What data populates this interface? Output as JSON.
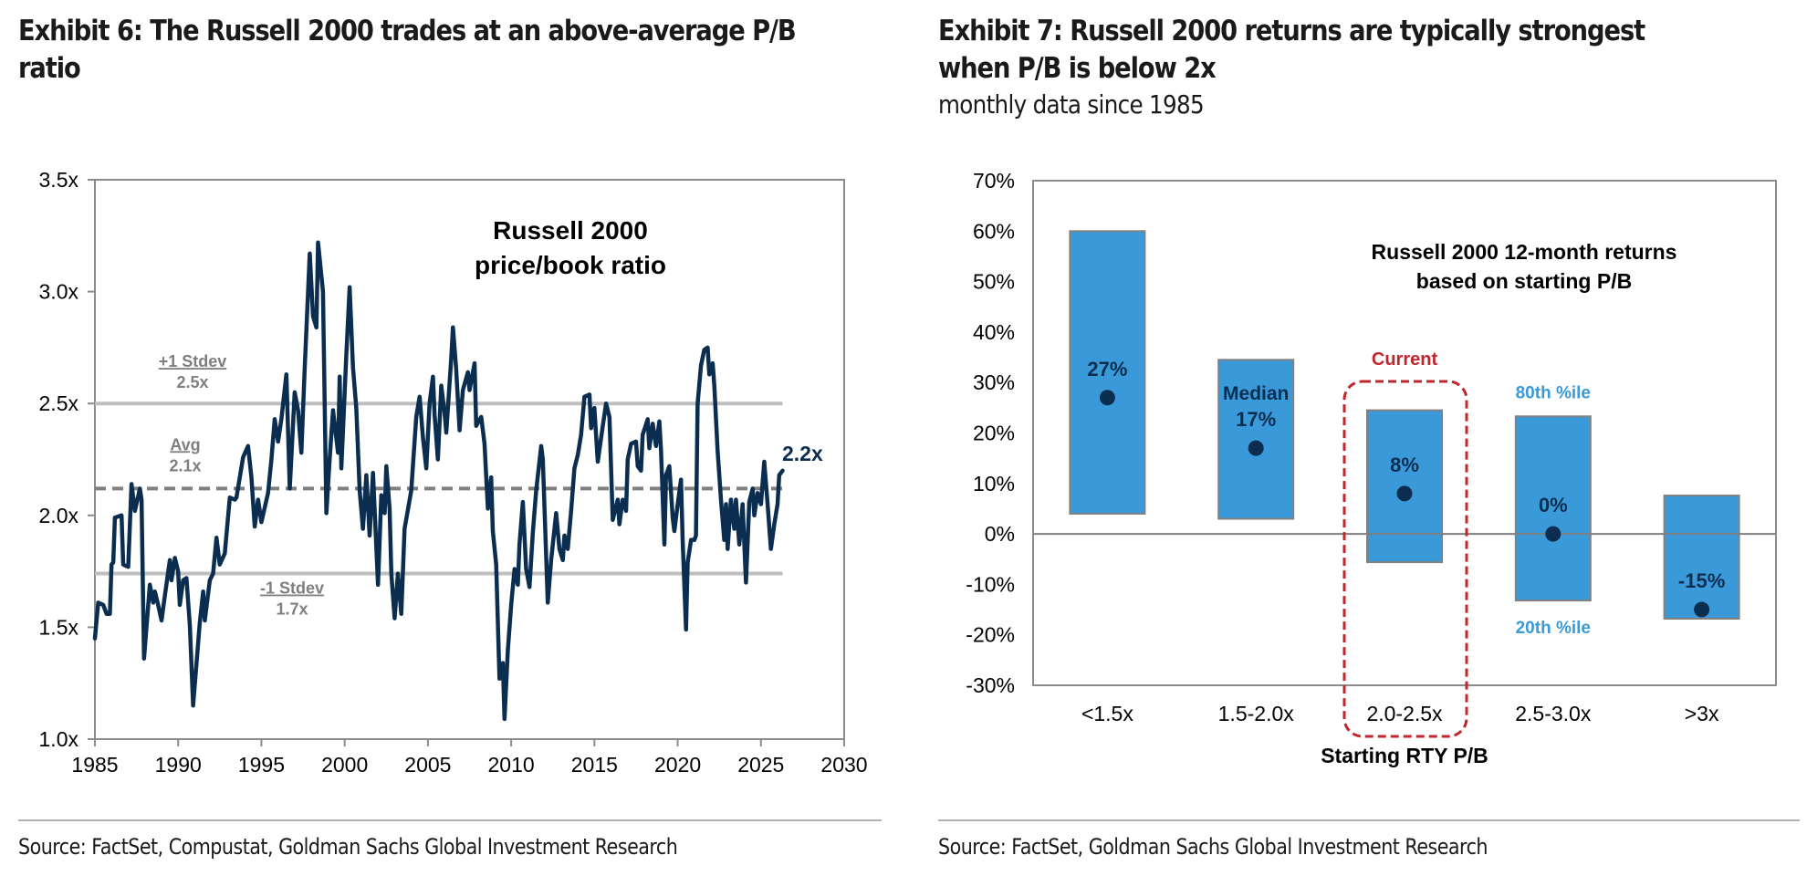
{
  "exhibit6": {
    "title_line1": "Exhibit 6: The Russell 2000 trades at an above-average P/B",
    "title_line2": "ratio",
    "source": "Source: FactSet, Compustat, Goldman Sachs Global Investment Research"
  },
  "exhibit7": {
    "title_line1": "Exhibit 7: Russell 2000 returns are typically strongest",
    "title_line2": "when P/B is below 2x",
    "subtitle": "monthly data since 1985",
    "source": "Source: FactSet, Goldman Sachs Global Investment Research"
  },
  "colors": {
    "line": "#0b2e50",
    "reference": "#bfbfbf",
    "avg": "#7f7f7f",
    "annotation_gray": "#7f7f7f",
    "bar_fill": "#3a9ad9",
    "bar_border": "#808080",
    "dot": "#0b2e50",
    "highlight": "#c0262d",
    "percentile_label": "#3a9ad9"
  },
  "chart_data": [
    {
      "type": "line",
      "title": "Russell 2000 price/book ratio",
      "title_lines": [
        "Russell 2000",
        "price/book ratio"
      ],
      "xlabel": "",
      "ylabel": "",
      "xlim": [
        1985,
        2030
      ],
      "ylim": [
        1.0,
        3.5
      ],
      "xticks": [
        1985,
        1990,
        1995,
        2000,
        2005,
        2010,
        2015,
        2020,
        2025,
        2030
      ],
      "xtick_labels": [
        "1985",
        "1990",
        "1995",
        "2000",
        "2005",
        "2010",
        "2015",
        "2020",
        "2025",
        "2030"
      ],
      "yticks": [
        1.0,
        1.5,
        2.0,
        2.5,
        3.0,
        3.5
      ],
      "ytick_labels": [
        "1.0x",
        "1.5x",
        "2.0x",
        "2.5x",
        "3.0x",
        "3.5x"
      ],
      "grid": false,
      "reference_lines": [
        {
          "name": "+1 Stdev",
          "value": 2.5,
          "label": "+1 Stdev",
          "value_label": "2.5x",
          "style": "solid"
        },
        {
          "name": "Avg",
          "value": 2.12,
          "label": "Avg",
          "value_label": "2.1x",
          "style": "dashed"
        },
        {
          "name": "-1 Stdev",
          "value": 1.74,
          "label": "-1 Stdev",
          "value_label": "1.7x",
          "style": "solid"
        }
      ],
      "last_value_label": "2.2x",
      "series": [
        {
          "name": "Russell 2000 P/B",
          "points": [
            [
              1985.0,
              1.45
            ],
            [
              1985.2,
              1.61
            ],
            [
              1985.5,
              1.6
            ],
            [
              1985.7,
              1.56
            ],
            [
              1985.9,
              1.56
            ],
            [
              1986.0,
              1.78
            ],
            [
              1986.1,
              1.79
            ],
            [
              1986.2,
              1.99
            ],
            [
              1986.6,
              2.0
            ],
            [
              1986.7,
              1.78
            ],
            [
              1987.0,
              1.77
            ],
            [
              1987.2,
              2.14
            ],
            [
              1987.4,
              2.02
            ],
            [
              1987.7,
              2.12
            ],
            [
              1987.8,
              2.07
            ],
            [
              1987.95,
              1.36
            ],
            [
              1988.3,
              1.69
            ],
            [
              1988.5,
              1.61
            ],
            [
              1988.6,
              1.66
            ],
            [
              1988.8,
              1.6
            ],
            [
              1989.0,
              1.53
            ],
            [
              1989.2,
              1.64
            ],
            [
              1989.5,
              1.8
            ],
            [
              1989.6,
              1.71
            ],
            [
              1989.8,
              1.81
            ],
            [
              1990.0,
              1.75
            ],
            [
              1990.1,
              1.6
            ],
            [
              1990.3,
              1.71
            ],
            [
              1990.5,
              1.72
            ],
            [
              1990.7,
              1.51
            ],
            [
              1990.9,
              1.15
            ],
            [
              1991.3,
              1.52
            ],
            [
              1991.5,
              1.66
            ],
            [
              1991.6,
              1.53
            ],
            [
              1991.9,
              1.71
            ],
            [
              1992.1,
              1.74
            ],
            [
              1992.3,
              1.9
            ],
            [
              1992.5,
              1.78
            ],
            [
              1992.8,
              1.83
            ],
            [
              1993.1,
              2.08
            ],
            [
              1993.4,
              2.07
            ],
            [
              1993.5,
              2.08
            ],
            [
              1993.9,
              2.26
            ],
            [
              1994.2,
              2.31
            ],
            [
              1994.4,
              2.17
            ],
            [
              1994.6,
              1.95
            ],
            [
              1994.8,
              2.07
            ],
            [
              1995.0,
              1.97
            ],
            [
              1995.4,
              2.1
            ],
            [
              1995.6,
              2.25
            ],
            [
              1995.8,
              2.43
            ],
            [
              1996.0,
              2.33
            ],
            [
              1996.2,
              2.43
            ],
            [
              1996.5,
              2.63
            ],
            [
              1996.7,
              2.12
            ],
            [
              1997.0,
              2.55
            ],
            [
              1997.2,
              2.47
            ],
            [
              1997.4,
              2.28
            ],
            [
              1997.6,
              2.66
            ],
            [
              1997.9,
              3.17
            ],
            [
              1998.1,
              2.89
            ],
            [
              1998.3,
              2.84
            ],
            [
              1998.4,
              3.22
            ],
            [
              1998.7,
              3.0
            ],
            [
              1998.9,
              2.01
            ],
            [
              1999.1,
              2.25
            ],
            [
              1999.3,
              2.47
            ],
            [
              1999.6,
              2.28
            ],
            [
              1999.7,
              2.62
            ],
            [
              1999.8,
              2.21
            ],
            [
              2000.1,
              2.72
            ],
            [
              2000.3,
              3.02
            ],
            [
              2000.5,
              2.66
            ],
            [
              2000.7,
              2.48
            ],
            [
              2000.9,
              2.11
            ],
            [
              2001.1,
              1.94
            ],
            [
              2001.3,
              2.18
            ],
            [
              2001.5,
              1.91
            ],
            [
              2001.7,
              2.19
            ],
            [
              2002.0,
              1.69
            ],
            [
              2002.2,
              2.09
            ],
            [
              2002.4,
              2.01
            ],
            [
              2002.5,
              2.22
            ],
            [
              2002.7,
              2.03
            ],
            [
              2002.8,
              1.74
            ],
            [
              2003.0,
              1.54
            ],
            [
              2003.2,
              1.74
            ],
            [
              2003.4,
              1.56
            ],
            [
              2003.6,
              1.94
            ],
            [
              2004.0,
              2.11
            ],
            [
              2004.3,
              2.44
            ],
            [
              2004.5,
              2.53
            ],
            [
              2004.7,
              2.35
            ],
            [
              2004.9,
              2.21
            ],
            [
              2005.1,
              2.5
            ],
            [
              2005.3,
              2.62
            ],
            [
              2005.4,
              2.45
            ],
            [
              2005.6,
              2.25
            ],
            [
              2005.8,
              2.58
            ],
            [
              2006.0,
              2.46
            ],
            [
              2006.1,
              2.37
            ],
            [
              2006.4,
              2.7
            ],
            [
              2006.5,
              2.84
            ],
            [
              2006.7,
              2.65
            ],
            [
              2006.9,
              2.38
            ],
            [
              2007.1,
              2.56
            ],
            [
              2007.4,
              2.64
            ],
            [
              2007.5,
              2.56
            ],
            [
              2007.8,
              2.68
            ],
            [
              2007.9,
              2.4
            ],
            [
              2008.2,
              2.44
            ],
            [
              2008.4,
              2.32
            ],
            [
              2008.6,
              2.03
            ],
            [
              2008.8,
              2.17
            ],
            [
              2008.9,
              1.93
            ],
            [
              2009.1,
              1.78
            ],
            [
              2009.3,
              1.27
            ],
            [
              2009.5,
              1.34
            ],
            [
              2009.6,
              1.09
            ],
            [
              2009.8,
              1.4
            ],
            [
              2010.0,
              1.6
            ],
            [
              2010.2,
              1.76
            ],
            [
              2010.4,
              1.69
            ],
            [
              2010.5,
              1.87
            ],
            [
              2010.7,
              2.06
            ],
            [
              2010.9,
              1.76
            ],
            [
              2011.1,
              1.68
            ],
            [
              2011.3,
              1.92
            ],
            [
              2011.5,
              2.11
            ],
            [
              2011.8,
              2.31
            ],
            [
              2011.9,
              2.25
            ],
            [
              2012.2,
              1.61
            ],
            [
              2012.4,
              1.8
            ],
            [
              2012.7,
              2.01
            ],
            [
              2012.9,
              1.85
            ],
            [
              2013.1,
              1.8
            ],
            [
              2013.2,
              1.91
            ],
            [
              2013.4,
              1.85
            ],
            [
              2013.6,
              2.02
            ],
            [
              2013.8,
              2.21
            ],
            [
              2014.0,
              2.27
            ],
            [
              2014.2,
              2.36
            ],
            [
              2014.4,
              2.53
            ],
            [
              2014.7,
              2.54
            ],
            [
              2014.8,
              2.39
            ],
            [
              2015.0,
              2.48
            ],
            [
              2015.2,
              2.24
            ],
            [
              2015.5,
              2.4
            ],
            [
              2015.7,
              2.5
            ],
            [
              2015.9,
              2.44
            ],
            [
              2016.1,
              1.98
            ],
            [
              2016.4,
              2.07
            ],
            [
              2016.5,
              1.96
            ],
            [
              2016.7,
              2.07
            ],
            [
              2016.9,
              2.02
            ],
            [
              2017.0,
              2.25
            ],
            [
              2017.2,
              2.32
            ],
            [
              2017.5,
              2.33
            ],
            [
              2017.6,
              2.22
            ],
            [
              2017.8,
              2.2
            ],
            [
              2017.9,
              2.36
            ],
            [
              2018.2,
              2.43
            ],
            [
              2018.3,
              2.3
            ],
            [
              2018.5,
              2.41
            ],
            [
              2018.7,
              2.31
            ],
            [
              2018.9,
              2.42
            ],
            [
              2019.0,
              2.29
            ],
            [
              2019.2,
              1.87
            ],
            [
              2019.3,
              2.18
            ],
            [
              2019.5,
              2.22
            ],
            [
              2019.7,
              1.99
            ],
            [
              2019.8,
              1.93
            ],
            [
              2020.0,
              2.05
            ],
            [
              2020.2,
              2.16
            ],
            [
              2020.3,
              1.89
            ],
            [
              2020.5,
              1.49
            ],
            [
              2020.6,
              1.79
            ],
            [
              2020.8,
              1.89
            ],
            [
              2021.0,
              1.89
            ],
            [
              2021.1,
              1.91
            ],
            [
              2021.2,
              2.5
            ],
            [
              2021.4,
              2.67
            ],
            [
              2021.6,
              2.74
            ],
            [
              2021.8,
              2.75
            ],
            [
              2021.9,
              2.63
            ],
            [
              2022.1,
              2.68
            ],
            [
              2022.2,
              2.58
            ],
            [
              2022.4,
              2.29
            ],
            [
              2022.6,
              2.07
            ],
            [
              2022.8,
              1.89
            ],
            [
              2022.9,
              2.05
            ],
            [
              2023.0,
              1.85
            ],
            [
              2023.2,
              2.07
            ],
            [
              2023.4,
              1.94
            ],
            [
              2023.5,
              2.07
            ],
            [
              2023.7,
              1.87
            ],
            [
              2023.9,
              2.05
            ],
            [
              2024.1,
              1.7
            ],
            [
              2024.3,
              2.06
            ],
            [
              2024.5,
              2.12
            ],
            [
              2024.6,
              2.0
            ],
            [
              2024.8,
              2.1
            ],
            [
              2025.0,
              2.05
            ],
            [
              2025.2,
              2.24
            ],
            [
              2025.4,
              2.05
            ],
            [
              2025.6,
              1.85
            ],
            [
              2025.8,
              1.96
            ],
            [
              2026.0,
              2.05
            ],
            [
              2026.1,
              2.18
            ],
            [
              2026.3,
              2.2
            ]
          ]
        }
      ]
    },
    {
      "type": "bar",
      "subtype": "floating-range-with-median",
      "title": "Russell 2000 12-month returns based on starting P/B",
      "title_lines": [
        "Russell 2000 12-month returns",
        "based on starting P/B"
      ],
      "xlabel": "Starting RTY P/B",
      "ylabel": "",
      "ylim": [
        -30,
        70
      ],
      "yticks": [
        -30,
        -20,
        -10,
        0,
        10,
        20,
        30,
        40,
        50,
        60,
        70
      ],
      "ytick_labels": [
        "-30%",
        "-20%",
        "-10%",
        "0%",
        "10%",
        "20%",
        "30%",
        "40%",
        "50%",
        "60%",
        "70%"
      ],
      "grid": false,
      "categories": [
        "<1.5x",
        "1.5-2.0x",
        "2.0-2.5x",
        "2.5-3.0x",
        ">3x"
      ],
      "series": [
        {
          "name": "80th %ile",
          "values": [
            60,
            34.5,
            24.5,
            23.3,
            7.6
          ]
        },
        {
          "name": "20th %ile",
          "values": [
            4,
            3,
            -5.6,
            -13.2,
            -16.8
          ]
        },
        {
          "name": "Median",
          "values": [
            27,
            17,
            8,
            0,
            -15
          ]
        }
      ],
      "median_labels": [
        "27%",
        "17%",
        "8%",
        "0%",
        "-15%"
      ],
      "annotations": {
        "median_word": "Median",
        "median_word_category": "1.5-2.0x",
        "p80_label": "80th %ile",
        "p20_label": "20th %ile",
        "percentile_label_category": "2.5-3.0x",
        "current_label": "Current",
        "current_category": "2.0-2.5x"
      }
    }
  ]
}
